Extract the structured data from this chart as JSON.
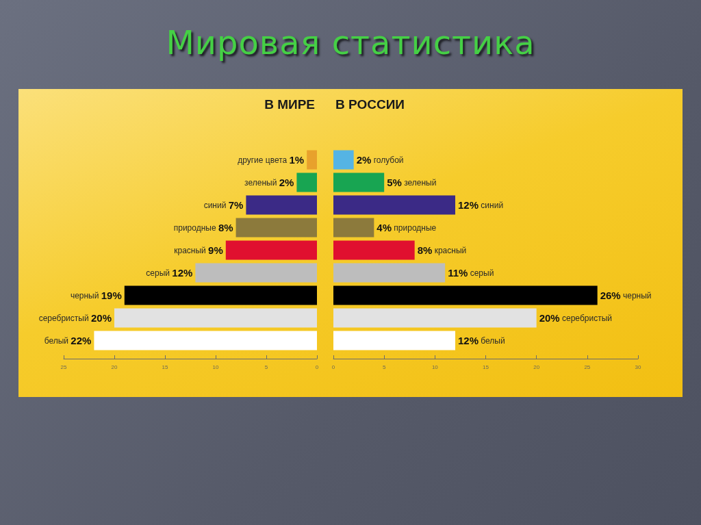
{
  "chart_data": [
    {
      "type": "bar",
      "orientation": "horizontal",
      "title": "Мировая статистика",
      "subtitle": "В МИРЕ",
      "categories": [
        "другие цвета",
        "зеленый",
        "синий",
        "природные",
        "красный",
        "серый",
        "черный",
        "серебристый",
        "белый"
      ],
      "values": [
        1,
        2,
        7,
        8,
        9,
        12,
        19,
        20,
        22
      ],
      "colors": [
        "#e8a12c",
        "#18a552",
        "#3b2a86",
        "#8c7a3c",
        "#e0102f",
        "#bdbdbd",
        "#000000",
        "#e2e2e2",
        "#ffffff"
      ],
      "value_labels": [
        "1%",
        "2%",
        "7%",
        "8%",
        "9%",
        "12%",
        "19%",
        "20%",
        "22%"
      ],
      "xlim": [
        25,
        0
      ],
      "xticks": [
        25,
        20,
        15,
        10,
        5,
        0
      ]
    },
    {
      "type": "bar",
      "orientation": "horizontal",
      "subtitle": "В РОССИИ",
      "categories": [
        "голубой",
        "зеленый",
        "синий",
        "природные",
        "красный",
        "серый",
        "черный",
        "серебристый",
        "белый"
      ],
      "values": [
        2,
        5,
        12,
        4,
        8,
        11,
        26,
        20,
        12
      ],
      "colors": [
        "#55b4e4",
        "#18a552",
        "#3b2a86",
        "#8c7a3c",
        "#e0102f",
        "#bdbdbd",
        "#000000",
        "#e2e2e2",
        "#ffffff"
      ],
      "value_labels": [
        "2%",
        "5%",
        "12%",
        "4%",
        "8%",
        "11%",
        "26%",
        "20%",
        "12%"
      ],
      "xlim": [
        0,
        30
      ],
      "xticks": [
        0,
        5,
        10,
        15,
        20,
        25,
        30
      ]
    }
  ]
}
